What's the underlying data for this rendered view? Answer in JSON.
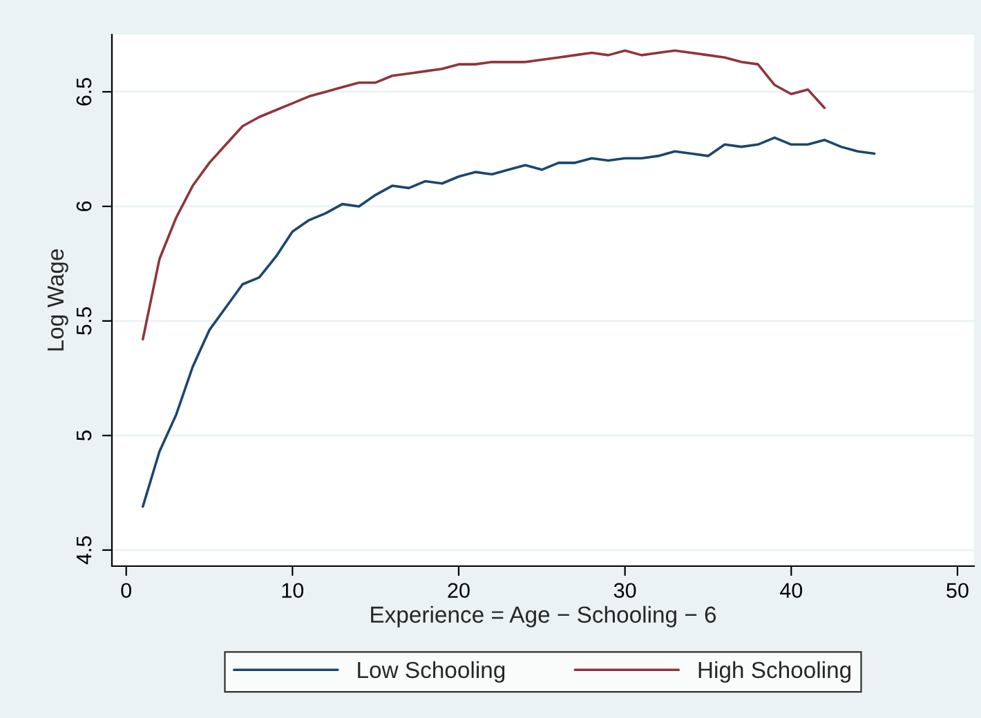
{
  "chart_data": {
    "type": "line",
    "xlabel": "Experience = Age − Schooling − 6",
    "ylabel": "Log Wage",
    "xlim": [
      -0.86,
      51
    ],
    "xticks": [
      0,
      10,
      20,
      30,
      40,
      50
    ],
    "ylim": [
      4.43,
      6.75
    ],
    "yticks": [
      4.5,
      5,
      5.5,
      6,
      6.5
    ],
    "grid": "y",
    "legend": "bottom",
    "marker": "none",
    "line_style": "solid",
    "series": [
      {
        "name": "Low Schooling",
        "color": "#1a476f",
        "x": [
          1,
          2,
          3,
          4,
          5,
          6,
          7,
          8,
          9,
          10,
          11,
          12,
          13,
          14,
          15,
          16,
          17,
          18,
          19,
          20,
          21,
          22,
          23,
          24,
          25,
          26,
          27,
          28,
          29,
          30,
          31,
          32,
          33,
          34,
          35,
          36,
          37,
          38,
          39,
          40,
          41,
          42,
          43,
          44,
          45
        ],
        "values": [
          4.69,
          4.93,
          5.09,
          5.3,
          5.46,
          5.56,
          5.66,
          5.69,
          5.78,
          5.89,
          5.94,
          5.97,
          6.01,
          6.0,
          6.05,
          6.09,
          6.08,
          6.11,
          6.1,
          6.13,
          6.15,
          6.14,
          6.16,
          6.18,
          6.16,
          6.19,
          6.19,
          6.21,
          6.2,
          6.21,
          6.21,
          6.22,
          6.24,
          6.23,
          6.22,
          6.27,
          6.26,
          6.27,
          6.3,
          6.27,
          6.27,
          6.29,
          6.26,
          6.24,
          6.23
        ]
      },
      {
        "name": "High Schooling",
        "color": "#90353b",
        "x": [
          1,
          2,
          3,
          4,
          5,
          6,
          7,
          8,
          9,
          10,
          11,
          12,
          13,
          14,
          15,
          16,
          17,
          18,
          19,
          20,
          21,
          22,
          23,
          24,
          25,
          26,
          27,
          28,
          29,
          30,
          31,
          32,
          33,
          34,
          35,
          36,
          37,
          38,
          39,
          40,
          41,
          42
        ],
        "values": [
          5.42,
          5.77,
          5.95,
          6.09,
          6.19,
          6.27,
          6.35,
          6.39,
          6.42,
          6.45,
          6.48,
          6.5,
          6.52,
          6.54,
          6.54,
          6.57,
          6.58,
          6.59,
          6.6,
          6.62,
          6.62,
          6.63,
          6.63,
          6.63,
          6.64,
          6.65,
          6.66,
          6.67,
          6.66,
          6.68,
          6.66,
          6.67,
          6.68,
          6.67,
          6.66,
          6.65,
          6.63,
          6.62,
          6.53,
          6.49,
          6.51,
          6.43
        ]
      }
    ]
  }
}
